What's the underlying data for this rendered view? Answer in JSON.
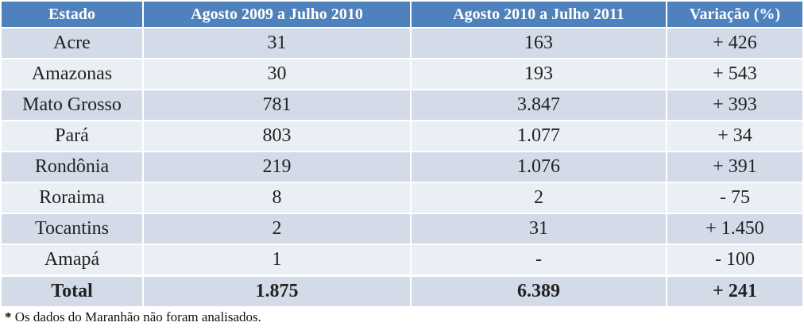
{
  "table": {
    "headers": [
      "Estado",
      "Agosto 2009 a Julho 2010",
      "Agosto 2010 a Julho 2011",
      "Variação (%)"
    ],
    "rows": [
      [
        "Acre",
        "31",
        "163",
        "+ 426"
      ],
      [
        "Amazonas",
        "30",
        "193",
        "+ 543"
      ],
      [
        "Mato Grosso",
        "781",
        "3.847",
        "+ 393"
      ],
      [
        "Pará",
        "803",
        "1.077",
        "+ 34"
      ],
      [
        "Rondônia",
        "219",
        "1.076",
        "+ 391"
      ],
      [
        "Roraima",
        "8",
        "2",
        "- 75"
      ],
      [
        "Tocantins",
        "2",
        "31",
        "+ 1.450"
      ],
      [
        "Amapá",
        "1",
        "-",
        "- 100"
      ]
    ],
    "total": [
      "Total",
      "1.875",
      "6.389",
      "+ 241"
    ]
  },
  "footnote": {
    "marker": "*",
    "text": " Os dados do Maranhão não foram analisados."
  },
  "colors": {
    "header_bg": "#4f81bd",
    "row_band_dark": "#d3dbe9",
    "row_band_light": "#eaeef5"
  }
}
